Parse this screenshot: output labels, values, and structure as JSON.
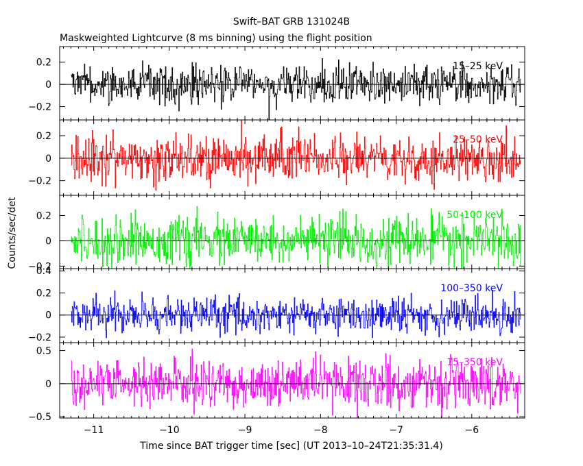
{
  "title": "Swift–BAT GRB 131024B",
  "subtitle": "Maskweighted Lightcurve (8 ms binning) using the flight position",
  "chart_data": {
    "type": "line",
    "xlabel": "Time since BAT trigger time [sec] (UT 2013–10–24T21:35:31.4)",
    "ylabel": "Counts/sec/det",
    "xlim": [
      -11.45,
      -5.3
    ],
    "x_ticks": [
      -11,
      -10,
      -9,
      -8,
      -7,
      -6
    ],
    "x_tick_labels": [
      "−11",
      "−10",
      "−9",
      "−8",
      "−7",
      "−6"
    ],
    "data_x_range": [
      -11.3,
      -5.35
    ],
    "bin_width": 0.008,
    "grid": false,
    "panels": [
      {
        "name": "15–25 keV",
        "color": "#000000",
        "ylim": [
          -0.32,
          0.34
        ],
        "y_ticks": [
          -0.2,
          0,
          0.2
        ],
        "y_tick_labels": [
          "−0.2",
          "0",
          "0.2"
        ],
        "noise_std": 0.09,
        "description": "noise-like fluctuations about zero"
      },
      {
        "name": "25–50 keV",
        "color": "#ff0000",
        "ylim": [
          -0.33,
          0.34
        ],
        "y_ticks": [
          -0.2,
          0,
          0.2
        ],
        "y_tick_labels": [
          "−0.2",
          "0",
          "0.2"
        ],
        "noise_std": 0.1,
        "description": "noise-like fluctuations about zero"
      },
      {
        "name": "50–100 keV",
        "color": "#00ee00",
        "ylim": [
          -0.22,
          0.36
        ],
        "y_ticks": [
          -0.2,
          0,
          0.2
        ],
        "y_tick_labels": [
          "−0.2",
          "0",
          "0.2"
        ],
        "noise_std": 0.09,
        "description": "noise-like fluctuations about zero"
      },
      {
        "name": "100–350 keV",
        "color": "#0000ff",
        "ylim": [
          -0.25,
          0.42
        ],
        "y_ticks": [
          -0.2,
          0,
          0.2,
          0.4
        ],
        "y_tick_labels": [
          "−0.2",
          "0",
          "0.2",
          "0.4"
        ],
        "noise_std": 0.08,
        "description": "noise-like fluctuations about zero"
      },
      {
        "name": "15–350 keV",
        "color": "#ff00ff",
        "ylim": [
          -0.52,
          0.62
        ],
        "y_ticks": [
          -0.5,
          0,
          0.5
        ],
        "y_tick_labels": [
          "−0.5",
          "0",
          "0.5"
        ],
        "noise_std": 0.18,
        "description": "noise-like fluctuations about zero"
      }
    ]
  }
}
